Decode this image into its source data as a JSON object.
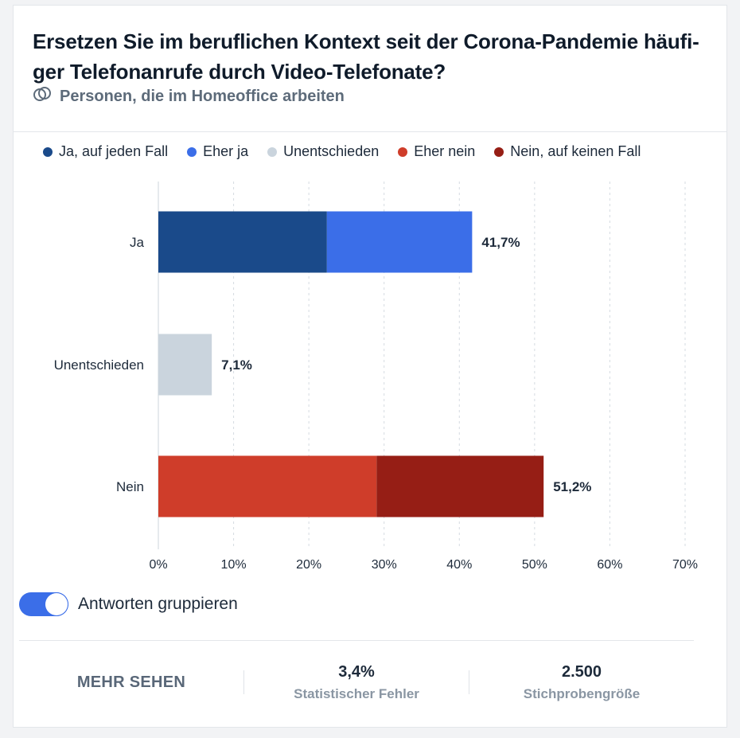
{
  "header": {
    "title": "Ersetzen Sie im beruflichen Kontext seit der Corona-Pandemie häufi-ger Telefonanrufe durch Video-Telefonate?",
    "title_line1": "Ersetzen Sie im beruflichen Kontext seit der Corona-Pandemie häufi-",
    "title_line2": "ger Telefonanrufe durch Video-Telefonate?",
    "subtitle": "Personen, die im Homeoffice arbeiten",
    "subtitle_icon": "overlapping-circles-icon"
  },
  "colors": {
    "ja_auf_jeden_fall": "#1a4a8a",
    "eher_ja": "#3b6ee8",
    "unentschieden": "#cad4dd",
    "eher_nein": "#cf3d2a",
    "nein_auf_keinen_fall": "#961e15",
    "toggle": "#3b6ee8"
  },
  "chart_data": {
    "type": "bar",
    "orientation": "horizontal",
    "stacked": true,
    "categories": [
      "Ja",
      "Unentschieden",
      "Nein"
    ],
    "series": [
      {
        "name": "Ja, auf jeden Fall",
        "values": [
          22.4,
          0,
          0
        ],
        "color": "#1a4a8a"
      },
      {
        "name": "Eher ja",
        "values": [
          19.3,
          0,
          0
        ],
        "color": "#3b6ee8"
      },
      {
        "name": "Unentschieden",
        "values": [
          0,
          7.1,
          0
        ],
        "color": "#cad4dd"
      },
      {
        "name": "Eher nein",
        "values": [
          0,
          0,
          29.0
        ],
        "color": "#cf3d2a"
      },
      {
        "name": "Nein, auf keinen Fall",
        "values": [
          0,
          0,
          22.2
        ],
        "color": "#961e15"
      }
    ],
    "totals": [
      "41,7%",
      "7,1%",
      "51,2%"
    ],
    "xlim": [
      0,
      70
    ],
    "xticks": [
      "0%",
      "10%",
      "20%",
      "30%",
      "40%",
      "50%",
      "60%",
      "70%"
    ],
    "grid": true,
    "legend_position": "top"
  },
  "toggle": {
    "label": "Antworten gruppieren",
    "on": true
  },
  "footer": {
    "more_label": "MEHR SEHEN",
    "error_value": "3,4%",
    "error_label": "Statistischer Fehler",
    "sample_value": "2.500",
    "sample_label": "Stichprobengröße"
  }
}
